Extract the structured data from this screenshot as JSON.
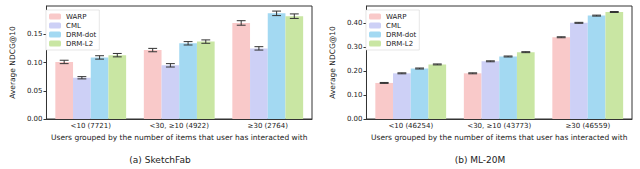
{
  "chart_data": [
    {
      "type": "bar",
      "title": "(a) SketchFab",
      "x_label": "Users grouped by the number of items that user has interacted with",
      "y_label": "Average NDCG@10",
      "categories": [
        "<10 (7721)",
        "<30, ≥10 (4922)",
        "≥30 (2764)"
      ],
      "series": [
        {
          "name": "WARP",
          "color": "#f9c9c9",
          "values": [
            0.101,
            0.122,
            0.17
          ],
          "errors": [
            0.003,
            0.003,
            0.004
          ]
        },
        {
          "name": "CML",
          "color": "#cdd0f6",
          "values": [
            0.073,
            0.095,
            0.125
          ],
          "errors": [
            0.002,
            0.003,
            0.003
          ]
        },
        {
          "name": "DRM-dot",
          "color": "#a3d9f2",
          "values": [
            0.109,
            0.134,
            0.187
          ],
          "errors": [
            0.003,
            0.003,
            0.004
          ]
        },
        {
          "name": "DRM-L2",
          "color": "#c9e6a3",
          "values": [
            0.113,
            0.137,
            0.182
          ],
          "errors": [
            0.003,
            0.003,
            0.004
          ]
        }
      ],
      "ylim": [
        0,
        0.2
      ],
      "yticks": [
        {
          "value": 0,
          "label": "0.00"
        },
        {
          "value": 0.05,
          "label": "0.05"
        },
        {
          "value": 0.1,
          "label": "0.10"
        },
        {
          "value": 0.15,
          "label": "0.15"
        }
      ],
      "grid": false,
      "legend": "upper left"
    },
    {
      "type": "bar",
      "title": "(b) ML-20M",
      "x_label": "Users grouped by the number of items that user has interacted with",
      "y_label": "Average NDCG@10",
      "categories": [
        "<10 (46254)",
        "<30, ≥10 (43773)",
        "≥30 (46559)"
      ],
      "series": [
        {
          "name": "WARP",
          "color": "#f9c9c9",
          "values": [
            0.15,
            0.19,
            0.34
          ],
          "errors": [
            0.002,
            0.002,
            0.002
          ]
        },
        {
          "name": "CML",
          "color": "#cdd0f6",
          "values": [
            0.19,
            0.24,
            0.4
          ],
          "errors": [
            0.002,
            0.002,
            0.002
          ]
        },
        {
          "name": "DRM-dot",
          "color": "#a3d9f2",
          "values": [
            0.21,
            0.26,
            0.43
          ],
          "errors": [
            0.002,
            0.002,
            0.002
          ]
        },
        {
          "name": "DRM-L2",
          "color": "#c9e6a3",
          "values": [
            0.227,
            0.278,
            0.445
          ],
          "errors": [
            0.002,
            0.002,
            0.002
          ]
        }
      ],
      "ylim": [
        0,
        0.47
      ],
      "yticks": [
        {
          "value": 0,
          "label": "0.00"
        },
        {
          "value": 0.1,
          "label": "0.10"
        },
        {
          "value": 0.2,
          "label": "0.20"
        },
        {
          "value": 0.3,
          "label": "0.30"
        },
        {
          "value": 0.4,
          "label": "0.40"
        }
      ],
      "grid": false,
      "legend": "upper left"
    }
  ]
}
